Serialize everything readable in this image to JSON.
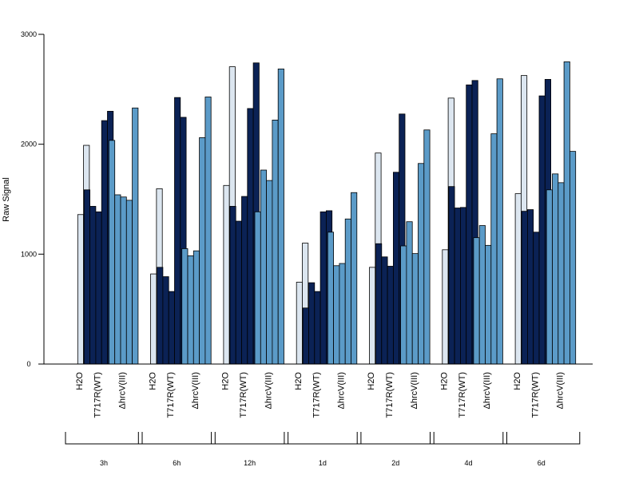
{
  "chart_data": {
    "type": "bar",
    "title": "",
    "xlabel": "",
    "ylabel": "Raw Signal",
    "ylim": [
      0,
      3000
    ],
    "yticks": [
      0,
      1000,
      2000,
      3000
    ],
    "grid": false,
    "legend": "none",
    "conditions": [
      "H2O",
      "T717R(WT)",
      "ΔhrcV(III)"
    ],
    "condition_colors": [
      "#dce6f0",
      "#0b2255",
      "#5b9bc8"
    ],
    "groups": [
      {
        "label": "3h",
        "values": [
          [
            1360,
            1990
          ],
          [
            1585,
            1435,
            1385,
            2215,
            2300
          ],
          [
            2035,
            1540,
            1520,
            1490,
            2330
          ]
        ]
      },
      {
        "label": "6h",
        "values": [
          [
            820,
            1595
          ],
          [
            880,
            795,
            660,
            2425,
            2245
          ],
          [
            1050,
            985,
            1030,
            2060,
            2430
          ]
        ]
      },
      {
        "label": "12h",
        "values": [
          [
            1625,
            2705
          ],
          [
            1435,
            1300,
            1525,
            2325,
            2740
          ],
          [
            1385,
            1765,
            1670,
            2220,
            2685
          ]
        ]
      },
      {
        "label": "1d",
        "values": [
          [
            745,
            1100
          ],
          [
            510,
            740,
            660,
            1385,
            1395
          ],
          [
            1200,
            895,
            915,
            1320,
            1560
          ]
        ]
      },
      {
        "label": "2d",
        "values": [
          [
            880,
            1920
          ],
          [
            1095,
            975,
            890,
            1745,
            2275
          ],
          [
            1075,
            1295,
            1005,
            1825,
            2130
          ]
        ]
      },
      {
        "label": "4d",
        "values": [
          [
            1040,
            2420
          ],
          [
            1615,
            1420,
            1425,
            2540,
            2580
          ],
          [
            1150,
            1260,
            1080,
            2095,
            2595
          ]
        ]
      },
      {
        "label": "6d",
        "values": [
          [
            1550,
            2625
          ],
          [
            1390,
            1405,
            1200,
            2440,
            2590
          ],
          [
            1585,
            1730,
            1650,
            2750,
            1935
          ]
        ]
      }
    ]
  }
}
